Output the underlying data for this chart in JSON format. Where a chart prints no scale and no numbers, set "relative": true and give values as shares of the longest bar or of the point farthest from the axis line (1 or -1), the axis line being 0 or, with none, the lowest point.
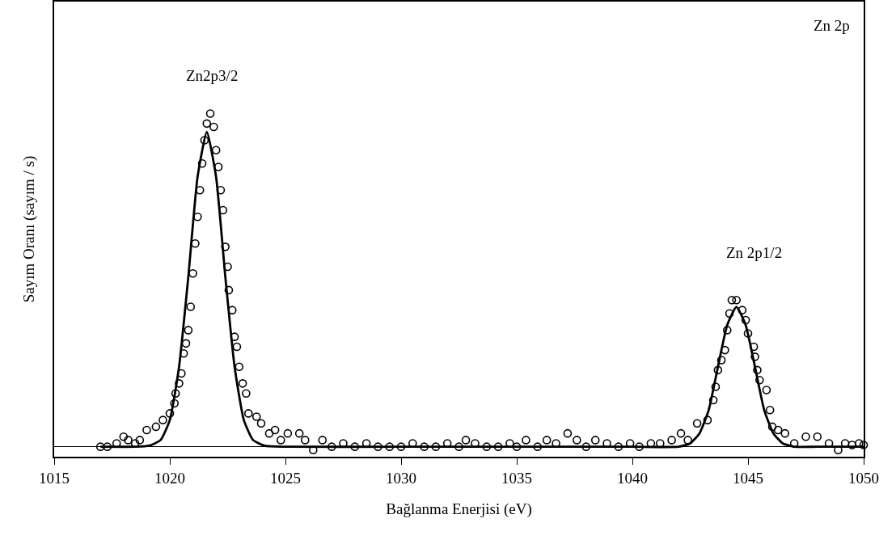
{
  "chart_data": {
    "type": "scatter",
    "relative": true,
    "xlabel": "Bağlanma Enerjisi (eV)",
    "ylabel": "Sayım Oranı (sayım / s)",
    "xlim": [
      1015,
      1050
    ],
    "xticks": [
      1015,
      1020,
      1025,
      1030,
      1035,
      1040,
      1045,
      1050
    ],
    "marker": "circle",
    "grid": false,
    "annotations": [
      "Zn2p3/2",
      "Zn 2p1/2",
      "Zn 2p"
    ],
    "series": [
      {
        "color": "#000000",
        "x": [
          1017.0,
          1017.3,
          1017.7,
          1018.0,
          1018.2,
          1018.5,
          1018.7,
          1019.0,
          1019.4,
          1019.7,
          1020.0,
          1020.2,
          1020.25,
          1020.4,
          1020.5,
          1020.6,
          1020.7,
          1020.8,
          1020.9,
          1021.0,
          1021.1,
          1021.2,
          1021.3,
          1021.4,
          1021.5,
          1021.6,
          1021.75,
          1021.9,
          1022.0,
          1022.1,
          1022.2,
          1022.3,
          1022.4,
          1022.5,
          1022.55,
          1022.7,
          1022.8,
          1022.9,
          1023.0,
          1023.15,
          1023.3,
          1023.4,
          1023.75,
          1023.95,
          1024.3,
          1024.55,
          1024.8,
          1025.1,
          1025.6,
          1025.85,
          1026.2,
          1026.6,
          1027.0,
          1027.5,
          1028.0,
          1028.5,
          1029.0,
          1029.5,
          1030.0,
          1030.5,
          1031.0,
          1031.5,
          1032.0,
          1032.5,
          1032.8,
          1033.2,
          1033.7,
          1034.2,
          1034.7,
          1035.0,
          1035.4,
          1035.9,
          1036.3,
          1036.7,
          1037.2,
          1037.6,
          1038.0,
          1038.4,
          1038.9,
          1039.4,
          1039.9,
          1040.3,
          1040.8,
          1041.2,
          1041.7,
          1042.1,
          1042.4,
          1042.8,
          1043.25,
          1043.5,
          1043.6,
          1043.7,
          1043.85,
          1044.0,
          1044.1,
          1044.2,
          1044.3,
          1044.5,
          1044.75,
          1044.9,
          1045.0,
          1045.25,
          1045.3,
          1045.4,
          1045.5,
          1045.8,
          1045.95,
          1046.05,
          1046.3,
          1046.6,
          1047.0,
          1047.5,
          1048.0,
          1048.5,
          1048.9,
          1049.2,
          1049.5,
          1049.8,
          1050.0
        ],
        "values": [
          0,
          0,
          0.01,
          0.03,
          0.02,
          0.01,
          0.02,
          0.05,
          0.06,
          0.08,
          0.1,
          0.13,
          0.16,
          0.19,
          0.22,
          0.28,
          0.31,
          0.35,
          0.42,
          0.52,
          0.61,
          0.69,
          0.77,
          0.85,
          0.92,
          0.97,
          1.0,
          0.96,
          0.89,
          0.84,
          0.77,
          0.71,
          0.6,
          0.54,
          0.47,
          0.41,
          0.33,
          0.3,
          0.24,
          0.19,
          0.16,
          0.1,
          0.09,
          0.07,
          0.04,
          0.05,
          0.02,
          0.04,
          0.04,
          0.02,
          -0.01,
          0.02,
          0.0,
          0.01,
          0.0,
          0.01,
          0.0,
          0.0,
          0.0,
          0.01,
          0.0,
          0.0,
          0.01,
          0.0,
          0.02,
          0.01,
          0.0,
          0.0,
          0.01,
          0.0,
          0.02,
          0.0,
          0.02,
          0.01,
          0.04,
          0.02,
          0.0,
          0.02,
          0.01,
          0.0,
          0.01,
          0.0,
          0.01,
          0.01,
          0.02,
          0.04,
          0.02,
          0.07,
          0.08,
          0.14,
          0.18,
          0.23,
          0.26,
          0.29,
          0.35,
          0.4,
          0.44,
          0.44,
          0.41,
          0.38,
          0.34,
          0.3,
          0.27,
          0.23,
          0.2,
          0.17,
          0.11,
          0.06,
          0.05,
          0.04,
          0.01,
          0.03,
          0.03,
          0.01,
          -0.01,
          0.01,
          0.005,
          0.01,
          0.005
        ]
      },
      {
        "type": "line",
        "color": "#000000",
        "marker": "none",
        "x": [
          1017.0,
          1018.5,
          1019.1,
          1019.6,
          1020.0,
          1020.4,
          1020.8,
          1021.2,
          1021.6,
          1022.0,
          1022.4,
          1022.8,
          1023.2,
          1023.6,
          1024.1,
          1025.0,
          1030.0,
          1035.0,
          1040.0,
          1042.0,
          1042.5,
          1042.9,
          1043.3,
          1043.7,
          1044.1,
          1044.5,
          1044.9,
          1045.3,
          1045.7,
          1046.1,
          1046.5,
          1047.0,
          1048.0,
          1050.0
        ],
        "values": [
          0,
          0,
          0.003,
          0.02,
          0.08,
          0.24,
          0.51,
          0.81,
          0.945,
          0.81,
          0.51,
          0.24,
          0.08,
          0.02,
          0.003,
          0,
          0,
          0,
          0,
          0,
          0.01,
          0.04,
          0.11,
          0.24,
          0.365,
          0.42,
          0.365,
          0.24,
          0.11,
          0.04,
          0.01,
          0,
          0,
          0
        ]
      }
    ]
  }
}
